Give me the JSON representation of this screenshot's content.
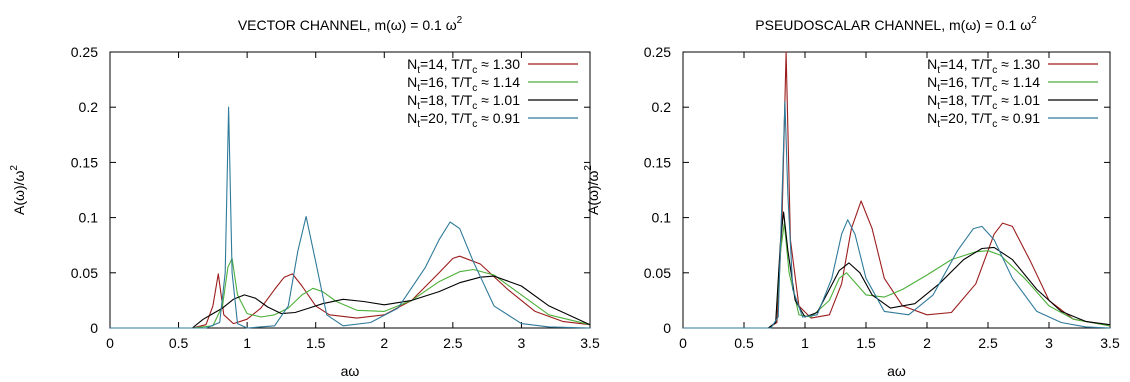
{
  "chart_data": [
    {
      "type": "line",
      "title": "VECTOR CHANNEL, m(ω) = 0.1 ω",
      "title_sup": "2",
      "xlabel": "aω",
      "ylabel": "A(ω)/ω",
      "ylabel_sup": "2",
      "xlim": [
        0,
        3.5
      ],
      "ylim": [
        0,
        0.25
      ],
      "xticks": [
        0,
        0.5,
        1,
        1.5,
        2,
        2.5,
        3,
        3.5
      ],
      "xtick_labels": [
        "0",
        "0.5",
        "1",
        "1.5",
        "2",
        "2.5",
        "3",
        "3.5"
      ],
      "yticks": [
        0,
        0.05,
        0.1,
        0.15,
        0.2,
        0.25
      ],
      "ytick_labels": [
        "0",
        "0.05",
        "0.1",
        "0.15",
        "0.2",
        "0.25"
      ],
      "legend_position": "top-right",
      "series": [
        {
          "name_parts": [
            "N",
            "t",
            "=14, T/T",
            "c",
            " ≈ 1.30"
          ],
          "color": "#9b1c1c",
          "x": [
            0,
            0.6,
            0.7,
            0.75,
            0.79,
            0.83,
            0.9,
            1.0,
            1.1,
            1.2,
            1.27,
            1.33,
            1.4,
            1.5,
            1.6,
            1.8,
            2.0,
            2.2,
            2.4,
            2.5,
            2.55,
            2.7,
            2.9,
            3.1,
            3.3,
            3.5
          ],
          "y": [
            0,
            0,
            0.003,
            0.02,
            0.049,
            0.012,
            0.004,
            0.008,
            0.018,
            0.035,
            0.046,
            0.049,
            0.038,
            0.02,
            0.012,
            0.009,
            0.012,
            0.025,
            0.05,
            0.063,
            0.065,
            0.058,
            0.035,
            0.015,
            0.006,
            0.003
          ]
        },
        {
          "name_parts": [
            "N",
            "t",
            "=16, T/T",
            "c",
            " ≈ 1.14"
          ],
          "color": "#4caf3a",
          "x": [
            0,
            0.6,
            0.75,
            0.82,
            0.86,
            0.89,
            0.93,
            1.0,
            1.1,
            1.2,
            1.3,
            1.4,
            1.48,
            1.55,
            1.65,
            1.8,
            2.0,
            2.2,
            2.4,
            2.55,
            2.65,
            2.8,
            3.0,
            3.2,
            3.5
          ],
          "y": [
            0,
            0,
            0.002,
            0.02,
            0.055,
            0.063,
            0.03,
            0.013,
            0.01,
            0.012,
            0.018,
            0.03,
            0.036,
            0.033,
            0.024,
            0.016,
            0.015,
            0.025,
            0.042,
            0.051,
            0.053,
            0.048,
            0.03,
            0.012,
            0.003
          ]
        },
        {
          "name_parts": [
            "N",
            "t",
            "=18, T/T",
            "c",
            " ≈ 1.01"
          ],
          "color": "#000000",
          "x": [
            0,
            0.6,
            0.68,
            0.75,
            0.82,
            0.9,
            0.98,
            1.06,
            1.15,
            1.25,
            1.35,
            1.45,
            1.55,
            1.7,
            1.85,
            2.0,
            2.2,
            2.4,
            2.55,
            2.7,
            2.8,
            3.0,
            3.2,
            3.5
          ],
          "y": [
            0,
            0,
            0.008,
            0.013,
            0.018,
            0.026,
            0.03,
            0.027,
            0.019,
            0.013,
            0.014,
            0.018,
            0.022,
            0.026,
            0.024,
            0.021,
            0.025,
            0.033,
            0.041,
            0.046,
            0.047,
            0.038,
            0.02,
            0.003
          ]
        },
        {
          "name_parts": [
            "N",
            "t",
            "=20, T/T",
            "c",
            " ≈ 0.91"
          ],
          "color": "#2f7a9a",
          "x": [
            0,
            0.7,
            0.8,
            0.84,
            0.865,
            0.89,
            0.93,
            1.0,
            1.2,
            1.3,
            1.37,
            1.43,
            1.5,
            1.58,
            1.7,
            1.9,
            2.1,
            2.3,
            2.4,
            2.48,
            2.55,
            2.65,
            2.8,
            3.0,
            3.2,
            3.5
          ],
          "y": [
            0,
            0,
            0.005,
            0.05,
            0.2,
            0.05,
            0.004,
            0,
            0.002,
            0.02,
            0.07,
            0.101,
            0.06,
            0.012,
            0.002,
            0.005,
            0.018,
            0.055,
            0.08,
            0.096,
            0.09,
            0.06,
            0.02,
            0.004,
            0.001,
            0
          ]
        }
      ]
    },
    {
      "type": "line",
      "title": "PSEUDOSCALAR CHANNEL, m(ω) = 0.1 ω",
      "title_sup": "2",
      "xlabel": "aω",
      "ylabel": "A(ω)/ω",
      "ylabel_sup": "2",
      "xlim": [
        0,
        3.5
      ],
      "ylim": [
        0,
        0.25
      ],
      "xticks": [
        0,
        0.5,
        1,
        1.5,
        2,
        2.5,
        3,
        3.5
      ],
      "xtick_labels": [
        "0",
        "0.5",
        "1",
        "1.5",
        "2",
        "2.5",
        "3",
        "3.5"
      ],
      "yticks": [
        0,
        0.05,
        0.1,
        0.15,
        0.2,
        0.25
      ],
      "ytick_labels": [
        "0",
        "0.05",
        "0.1",
        "0.15",
        "0.2",
        "0.25"
      ],
      "legend_position": "top-right",
      "series": [
        {
          "name_parts": [
            "N",
            "t",
            "=14, T/T",
            "c",
            " ≈ 1.30"
          ],
          "color": "#9b1c1c",
          "x": [
            0,
            0.7,
            0.77,
            0.81,
            0.845,
            0.88,
            0.95,
            1.05,
            1.2,
            1.3,
            1.38,
            1.46,
            1.55,
            1.65,
            1.8,
            2.0,
            2.2,
            2.4,
            2.55,
            2.62,
            2.7,
            2.85,
            3.0,
            3.2,
            3.5
          ],
          "y": [
            0,
            0,
            0.005,
            0.09,
            0.25,
            0.08,
            0.02,
            0.009,
            0.012,
            0.04,
            0.09,
            0.115,
            0.09,
            0.045,
            0.02,
            0.012,
            0.014,
            0.04,
            0.085,
            0.095,
            0.092,
            0.06,
            0.025,
            0.008,
            0.002
          ]
        },
        {
          "name_parts": [
            "N",
            "t",
            "=16, T/T",
            "c",
            " ≈ 1.14"
          ],
          "color": "#4caf3a",
          "x": [
            0,
            0.7,
            0.76,
            0.8,
            0.83,
            0.87,
            0.95,
            1.05,
            1.2,
            1.28,
            1.34,
            1.42,
            1.5,
            1.65,
            1.8,
            2.0,
            2.2,
            2.4,
            2.5,
            2.6,
            2.8,
            3.0,
            3.2,
            3.5
          ],
          "y": [
            0,
            0,
            0.005,
            0.07,
            0.095,
            0.05,
            0.012,
            0.01,
            0.025,
            0.045,
            0.05,
            0.04,
            0.03,
            0.028,
            0.035,
            0.048,
            0.062,
            0.069,
            0.07,
            0.066,
            0.045,
            0.02,
            0.008,
            0.002
          ]
        },
        {
          "name_parts": [
            "N",
            "t",
            "=18, T/T",
            "c",
            " ≈ 1.01"
          ],
          "color": "#000000",
          "x": [
            0,
            0.7,
            0.76,
            0.8,
            0.825,
            0.86,
            0.92,
            1.0,
            1.1,
            1.2,
            1.28,
            1.36,
            1.45,
            1.55,
            1.7,
            1.9,
            2.1,
            2.3,
            2.45,
            2.55,
            2.7,
            2.9,
            3.1,
            3.3,
            3.5
          ],
          "y": [
            0,
            0,
            0.005,
            0.08,
            0.105,
            0.07,
            0.025,
            0.01,
            0.014,
            0.035,
            0.052,
            0.059,
            0.05,
            0.03,
            0.018,
            0.022,
            0.04,
            0.062,
            0.072,
            0.073,
            0.062,
            0.035,
            0.015,
            0.006,
            0.003
          ]
        },
        {
          "name_parts": [
            "N",
            "t",
            "=20, T/T",
            "c",
            " ≈ 0.91"
          ],
          "color": "#2f7a9a",
          "x": [
            0,
            0.72,
            0.78,
            0.815,
            0.835,
            0.86,
            0.9,
            0.98,
            1.1,
            1.22,
            1.3,
            1.35,
            1.41,
            1.5,
            1.65,
            1.85,
            2.05,
            2.25,
            2.38,
            2.45,
            2.55,
            2.7,
            2.9,
            3.1,
            3.3,
            3.5
          ],
          "y": [
            0,
            0,
            0.01,
            0.13,
            0.205,
            0.12,
            0.035,
            0.01,
            0.012,
            0.045,
            0.085,
            0.098,
            0.085,
            0.045,
            0.015,
            0.012,
            0.03,
            0.07,
            0.09,
            0.092,
            0.08,
            0.045,
            0.015,
            0.005,
            0.001,
            0
          ]
        }
      ]
    }
  ]
}
